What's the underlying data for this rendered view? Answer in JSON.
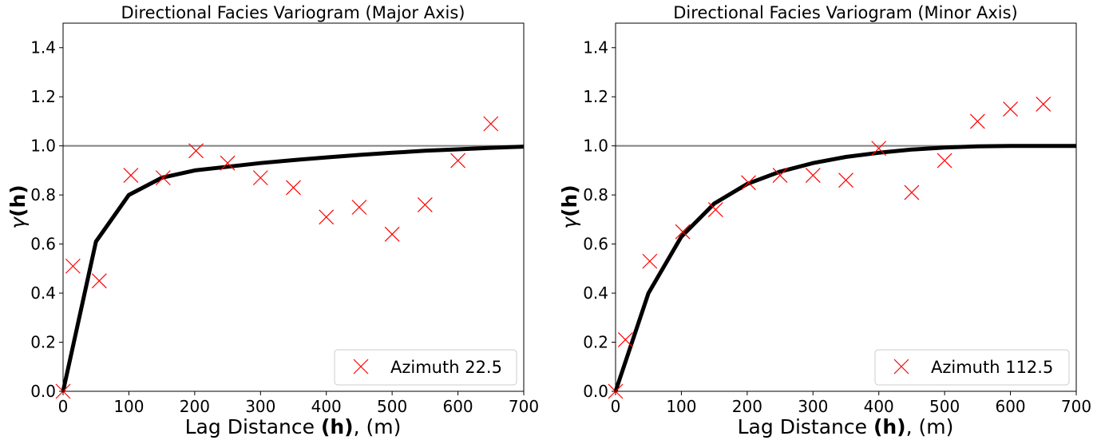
{
  "chart_data": [
    {
      "type": "scatter",
      "title": "Directional Facies Variogram (Major Axis)",
      "xlabel_prefix": "Lag Distance ",
      "xlabel_bold": "(h)",
      "xlabel_suffix": ", (m)",
      "ylabel_italic": "γ",
      "ylabel_rest": "(h)",
      "xlim": [
        0,
        700
      ],
      "ylim": [
        0,
        1.5
      ],
      "xticks": [
        0,
        100,
        200,
        300,
        400,
        500,
        600,
        700
      ],
      "yticks": [
        0.0,
        0.2,
        0.4,
        0.6,
        0.8,
        1.0,
        1.2,
        1.4
      ],
      "xtick_labels": [
        "0",
        "100",
        "200",
        "300",
        "400",
        "500",
        "600",
        "700"
      ],
      "ytick_labels": [
        "0.0",
        "0.2",
        "0.4",
        "0.6",
        "0.8",
        "1.0",
        "1.2",
        "1.4"
      ],
      "sill": 1.0,
      "legend": {
        "label": "Azimuth 22.5",
        "position": "lower-right"
      },
      "points": {
        "x": [
          0,
          15,
          55,
          103,
          152,
          202,
          250,
          300,
          350,
          400,
          450,
          500,
          550,
          600,
          650
        ],
        "y": [
          0.0,
          0.51,
          0.45,
          0.88,
          0.87,
          0.98,
          0.93,
          0.87,
          0.83,
          0.71,
          0.75,
          0.64,
          0.76,
          0.94,
          1.09
        ]
      },
      "model": {
        "x": [
          0,
          50,
          100,
          150,
          200,
          250,
          300,
          350,
          400,
          450,
          500,
          550,
          600,
          650,
          700
        ],
        "y": [
          0.0,
          0.61,
          0.8,
          0.87,
          0.9,
          0.915,
          0.93,
          0.942,
          0.953,
          0.963,
          0.972,
          0.98,
          0.986,
          0.992,
          0.997
        ]
      },
      "colors": {
        "points": "#ff0000",
        "model": "#000000",
        "sill": "#808080"
      }
    },
    {
      "type": "scatter",
      "title": "Directional Facies Variogram (Minor Axis)",
      "xlabel_prefix": "Lag Distance ",
      "xlabel_bold": "(h)",
      "xlabel_suffix": ", (m)",
      "ylabel_italic": "γ",
      "ylabel_rest": "(h)",
      "xlim": [
        0,
        700
      ],
      "ylim": [
        0,
        1.5
      ],
      "xticks": [
        0,
        100,
        200,
        300,
        400,
        500,
        600,
        700
      ],
      "yticks": [
        0.0,
        0.2,
        0.4,
        0.6,
        0.8,
        1.0,
        1.2,
        1.4
      ],
      "xtick_labels": [
        "0",
        "100",
        "200",
        "300",
        "400",
        "500",
        "600",
        "700"
      ],
      "ytick_labels": [
        "0.0",
        "0.2",
        "0.4",
        "0.6",
        "0.8",
        "1.0",
        "1.2",
        "1.4"
      ],
      "sill": 1.0,
      "legend": {
        "label": "Azimuth 112.5",
        "position": "lower-right"
      },
      "points": {
        "x": [
          0,
          15,
          52,
          102,
          152,
          202,
          250,
          300,
          350,
          400,
          450,
          500,
          550,
          600,
          650
        ],
        "y": [
          0.0,
          0.21,
          0.53,
          0.65,
          0.74,
          0.85,
          0.88,
          0.88,
          0.86,
          0.99,
          0.81,
          0.94,
          1.1,
          1.15,
          1.17
        ]
      },
      "model": {
        "x": [
          0,
          50,
          100,
          150,
          200,
          250,
          300,
          350,
          400,
          450,
          500,
          550,
          600,
          650,
          700
        ],
        "y": [
          0.0,
          0.4,
          0.63,
          0.765,
          0.845,
          0.895,
          0.93,
          0.955,
          0.972,
          0.985,
          0.993,
          0.998,
          1.0,
          1.0,
          1.0
        ]
      },
      "colors": {
        "points": "#ff0000",
        "model": "#000000",
        "sill": "#808080"
      }
    }
  ]
}
